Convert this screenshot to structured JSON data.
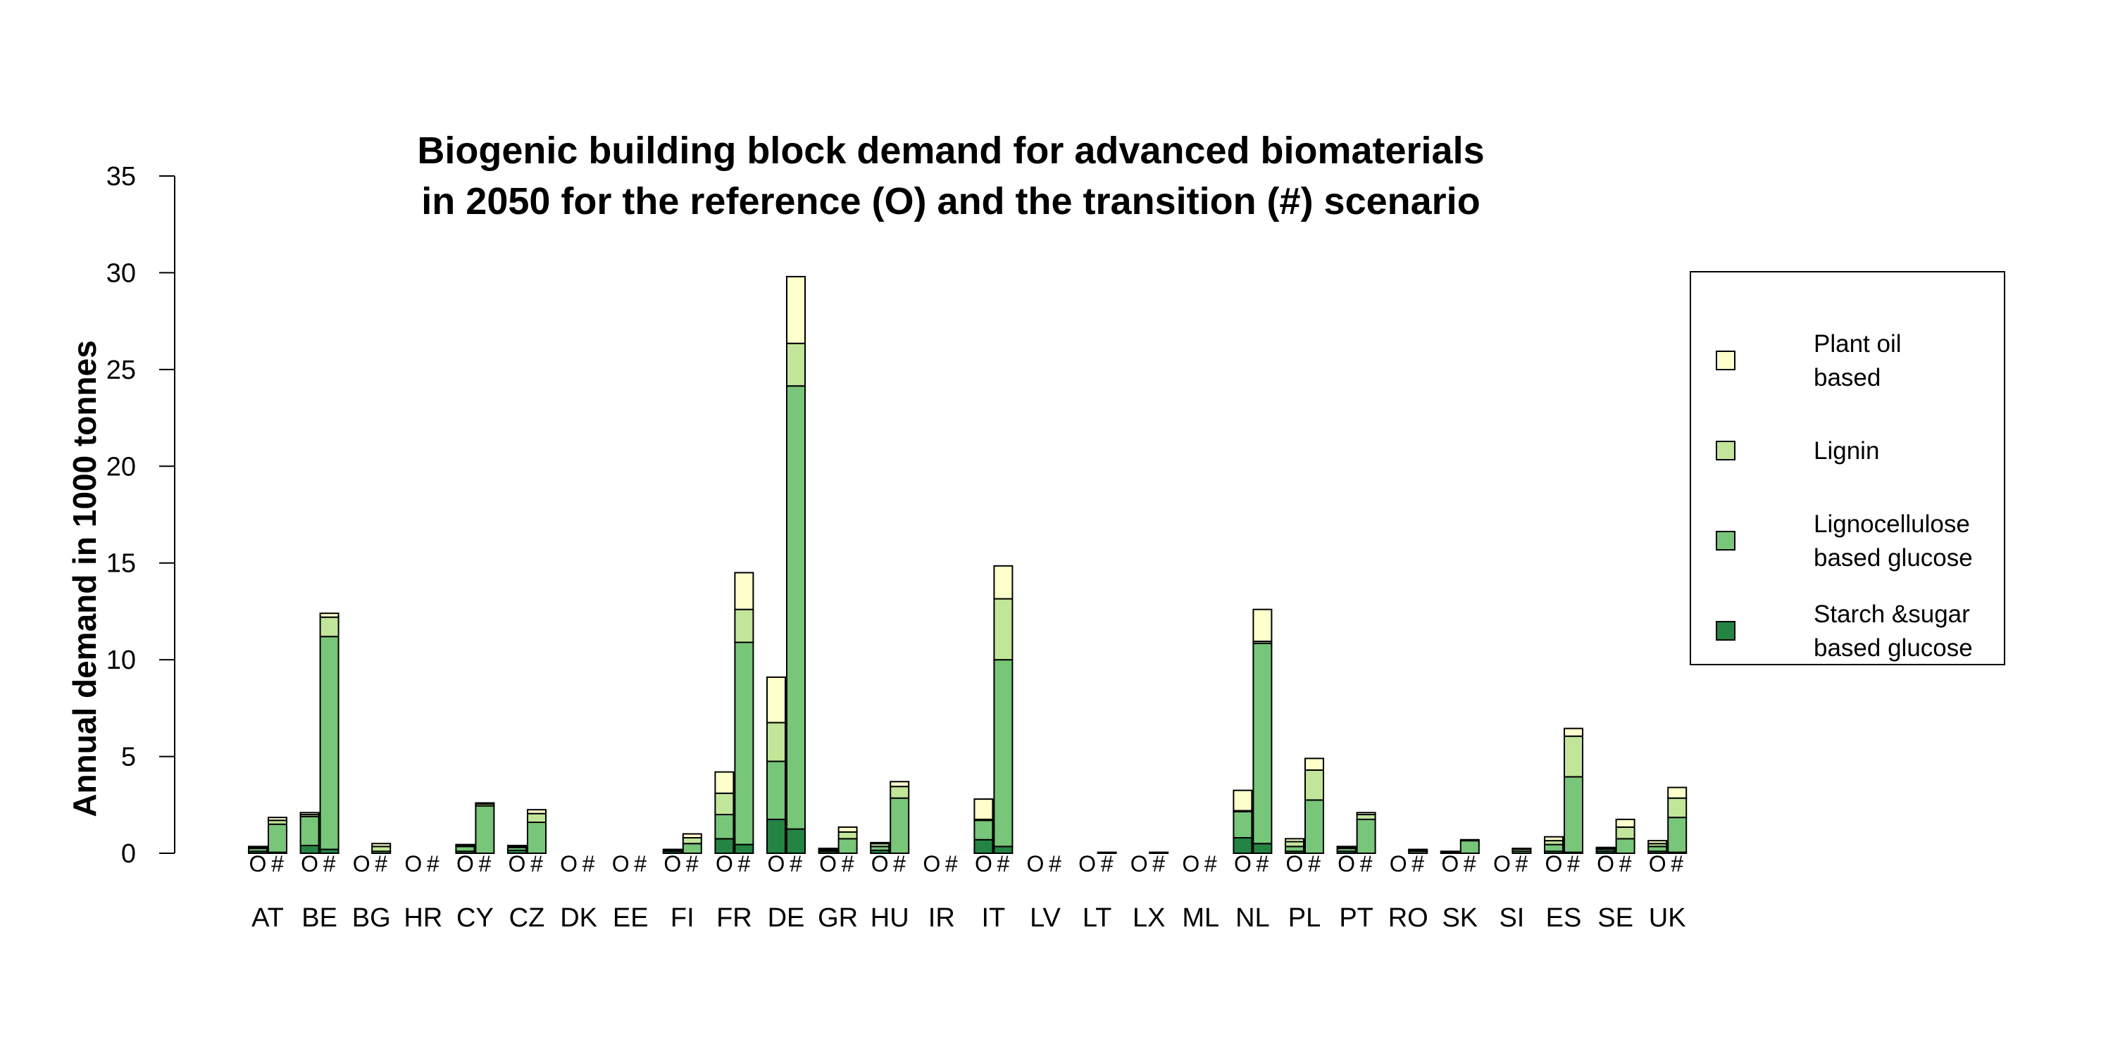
{
  "chart_data": {
    "type": "bar",
    "stacked": true,
    "title_line1": "Biogenic building block demand for advanced biomaterials",
    "title_line2": "in 2050 for the reference (O) and the transition (#) scenario",
    "xlabel": "",
    "ylabel": "Annual demand in 1000 tonnes",
    "ylim": [
      0,
      35
    ],
    "yticks": [
      "0",
      "5",
      "10",
      "15",
      "20",
      "25",
      "30",
      "35"
    ],
    "grid": false,
    "legend_position": "right",
    "scenario_labels": [
      "O",
      "#"
    ],
    "categories": [
      "AT",
      "BE",
      "BG",
      "HR",
      "CY",
      "CZ",
      "DK",
      "EE",
      "FI",
      "FR",
      "DE",
      "GR",
      "HU",
      "IR",
      "IT",
      "LV",
      "LT",
      "LX",
      "ML",
      "NL",
      "PL",
      "PT",
      "RO",
      "SK",
      "SI",
      "ES",
      "SE",
      "UK"
    ],
    "series": [
      {
        "name": "Starch &sugar based glucose",
        "legend_lines": [
          "Starch &sugar",
          "based glucose"
        ],
        "color": "#238443",
        "O": [
          0.1,
          0.4,
          0.0,
          0.0,
          0.1,
          0.15,
          0.0,
          0.0,
          0.1,
          0.75,
          1.75,
          0.1,
          0.15,
          0.0,
          0.7,
          0.0,
          0.0,
          0.0,
          0.0,
          0.8,
          0.1,
          0.1,
          0.0,
          0.05,
          0.0,
          0.1,
          0.1,
          0.1
        ],
        "T": [
          0.05,
          0.2,
          0.0,
          0.0,
          0.0,
          0.0,
          0.0,
          0.0,
          0.0,
          0.45,
          1.25,
          0.0,
          0.0,
          0.0,
          0.35,
          0.0,
          0.0,
          0.0,
          0.0,
          0.5,
          0.0,
          0.0,
          0.0,
          0.0,
          0.0,
          0.05,
          0.0,
          0.05
        ]
      },
      {
        "name": "Lignocellulose based glucose",
        "legend_lines": [
          "Lignocellulose",
          "based glucose"
        ],
        "color": "#78c679",
        "O": [
          0.15,
          1.5,
          0.0,
          0.0,
          0.25,
          0.15,
          0.0,
          0.0,
          0.05,
          1.25,
          3.0,
          0.05,
          0.2,
          0.0,
          1.0,
          0.0,
          0.0,
          0.0,
          0.0,
          1.35,
          0.25,
          0.15,
          0.0,
          0.05,
          0.0,
          0.35,
          0.1,
          0.25
        ],
        "T": [
          1.45,
          11.0,
          0.1,
          0.0,
          2.45,
          1.6,
          0.0,
          0.0,
          0.5,
          10.45,
          22.9,
          0.75,
          2.85,
          0.0,
          9.65,
          0.0,
          0.05,
          0.05,
          0.0,
          10.35,
          2.75,
          1.75,
          0.1,
          0.65,
          0.1,
          3.9,
          0.75,
          1.8
        ]
      },
      {
        "name": "Lignin",
        "legend_lines": [
          "Lignin"
        ],
        "color": "#c2e699",
        "O": [
          0.05,
          0.1,
          0.0,
          0.0,
          0.05,
          0.05,
          0.0,
          0.0,
          0.0,
          1.1,
          2.0,
          0.05,
          0.15,
          0.0,
          0.05,
          0.0,
          0.0,
          0.0,
          0.0,
          0.05,
          0.25,
          0.05,
          0.0,
          0.0,
          0.0,
          0.2,
          0.05,
          0.15
        ],
        "T": [
          0.2,
          1.0,
          0.25,
          0.0,
          0.1,
          0.45,
          0.0,
          0.0,
          0.3,
          1.7,
          2.2,
          0.35,
          0.6,
          0.0,
          3.15,
          0.0,
          0.0,
          0.0,
          0.0,
          0.1,
          1.55,
          0.25,
          0.05,
          0.05,
          0.1,
          2.1,
          0.6,
          1.0
        ]
      },
      {
        "name": "Plant oil based",
        "legend_lines": [
          "Plant oil",
          "based"
        ],
        "color": "#ffffcc",
        "O": [
          0.05,
          0.1,
          0.0,
          0.0,
          0.05,
          0.05,
          0.0,
          0.0,
          0.05,
          1.1,
          2.35,
          0.05,
          0.05,
          0.0,
          1.05,
          0.0,
          0.0,
          0.0,
          0.0,
          1.05,
          0.15,
          0.05,
          0.0,
          0.0,
          0.0,
          0.2,
          0.05,
          0.15
        ],
        "T": [
          0.15,
          0.2,
          0.15,
          0.0,
          0.05,
          0.2,
          0.0,
          0.0,
          0.2,
          1.9,
          3.45,
          0.25,
          0.25,
          0.0,
          1.7,
          0.0,
          0.0,
          0.0,
          0.0,
          1.65,
          0.6,
          0.1,
          0.05,
          0.0,
          0.05,
          0.4,
          0.4,
          0.55
        ]
      }
    ]
  }
}
